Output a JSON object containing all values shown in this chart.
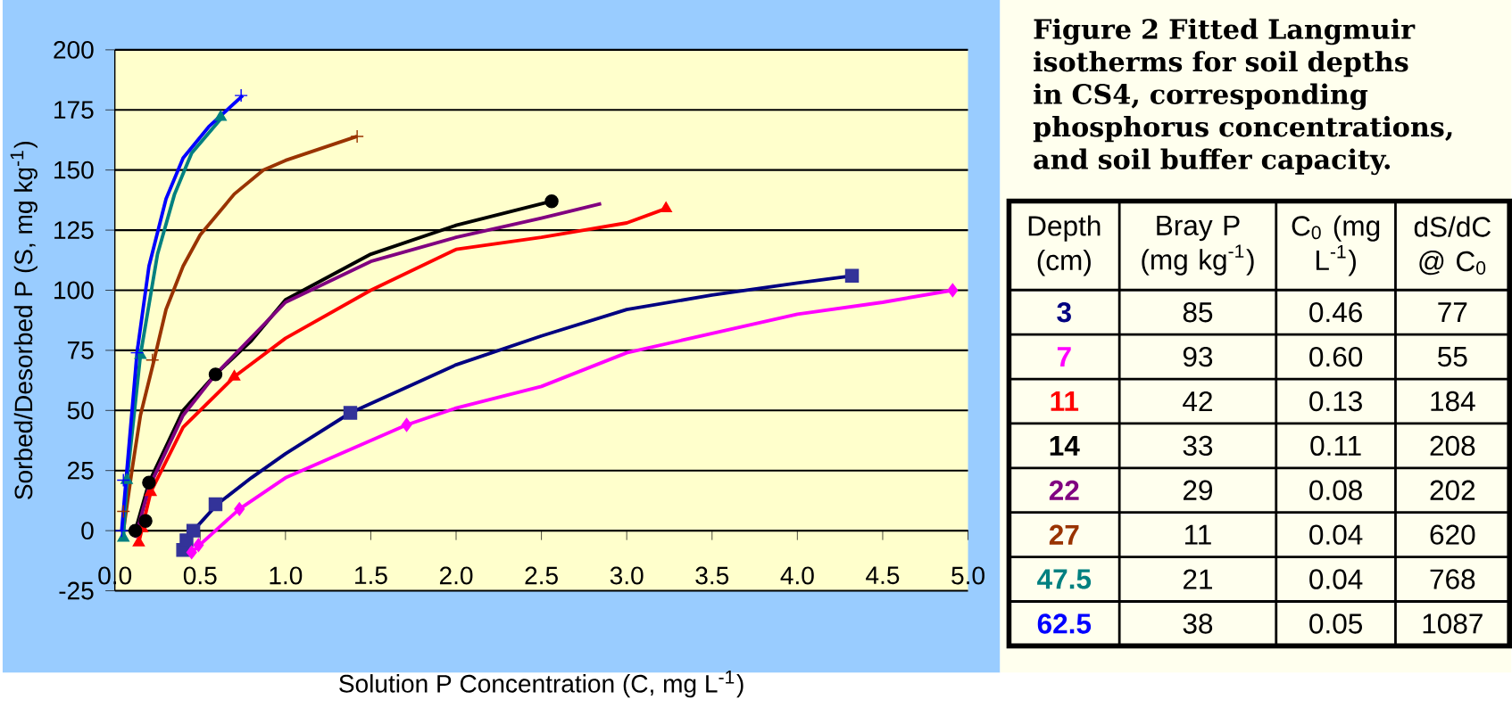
{
  "chart_data": [
    {
      "type": "line",
      "xlabel": "Solution P Concentration (C, mg L$^{-1}$)",
      "ylabel": "Sorbed/Desorbed P (S, mg kg$^{-1}$)",
      "xlim": [
        0,
        5
      ],
      "ylim": [
        -25,
        200
      ],
      "xticks": [
        {
          "value": 0,
          "label": "0.0"
        },
        {
          "value": 0.5,
          "label": "0.5"
        },
        {
          "value": 1,
          "label": "1.0"
        },
        {
          "value": 1.5,
          "label": "1.5"
        },
        {
          "value": 2,
          "label": "2.0"
        },
        {
          "value": 2.5,
          "label": "2.5"
        },
        {
          "value": 3,
          "label": "3.0"
        },
        {
          "value": 3.5,
          "label": "3.5"
        },
        {
          "value": 4,
          "label": "4.0"
        },
        {
          "value": 4.5,
          "label": "4.5"
        },
        {
          "value": 5,
          "label": "5.0"
        }
      ],
      "yticks": [
        -25,
        0,
        25,
        50,
        75,
        100,
        125,
        150,
        175,
        200
      ],
      "grid": "y",
      "series": [
        {
          "type": "line",
          "color": "#000080",
          "marker": "none",
          "x": [
            0.4,
            0.46,
            0.6,
            0.8,
            1.0,
            1.38,
            2.0,
            2.5,
            3.0,
            3.5,
            4.0,
            4.32
          ],
          "values": [
            -8,
            0,
            11,
            22,
            32,
            49,
            69,
            81,
            92,
            98,
            103,
            106
          ]
        },
        {
          "type": "line",
          "color": "#ff00ff",
          "marker": "none",
          "x": [
            0.45,
            0.73,
            1.0,
            1.71,
            2.0,
            2.5,
            3.0,
            3.5,
            4.0,
            4.5,
            4.91
          ],
          "values": [
            -9,
            9,
            22,
            44,
            51,
            60,
            74,
            82,
            90,
            95,
            100
          ]
        },
        {
          "type": "line",
          "color": "#ff0000",
          "marker": "none",
          "x": [
            0.14,
            0.21,
            0.4,
            0.7,
            1.0,
            1.5,
            2.0,
            2.5,
            3.0,
            3.23
          ],
          "values": [
            -5,
            16,
            43,
            64,
            80,
            100,
            117,
            122,
            128,
            134
          ]
        },
        {
          "type": "line",
          "color": "#000000",
          "marker": "none",
          "x": [
            0.12,
            0.2,
            0.4,
            0.59,
            0.8,
            1.0,
            1.5,
            2.0,
            2.56
          ],
          "values": [
            0,
            20,
            50,
            65,
            79,
            96,
            115,
            127,
            137
          ]
        },
        {
          "type": "line",
          "color": "#800080",
          "marker": "none",
          "x": [
            0.12,
            0.2,
            0.4,
            0.59,
            1.0,
            1.5,
            2.0,
            2.5,
            2.85
          ],
          "values": [
            -3,
            18,
            48,
            65,
            95,
            112,
            122,
            130,
            136
          ]
        },
        {
          "type": "line",
          "color": "#993300",
          "marker": "none",
          "x": [
            0.05,
            0.1,
            0.15,
            0.23,
            0.3,
            0.4,
            0.5,
            0.7,
            0.87,
            1.0,
            1.42
          ],
          "values": [
            0,
            25,
            48,
            71,
            92,
            110,
            123,
            140,
            150,
            154,
            164
          ]
        },
        {
          "type": "line",
          "color": "#008080",
          "marker": "none",
          "x": [
            0.05,
            0.07,
            0.15,
            0.25,
            0.35,
            0.45,
            0.63
          ],
          "values": [
            -3,
            20,
            73,
            115,
            140,
            157,
            172
          ]
        },
        {
          "type": "line",
          "color": "#0000ff",
          "marker": "none",
          "x": [
            0.04,
            0.13,
            0.2,
            0.3,
            0.4,
            0.55,
            0.75
          ],
          "values": [
            0,
            74,
            110,
            138,
            155,
            168,
            181
          ]
        },
        {
          "type": "scatter",
          "color": "#333399",
          "marker": "square",
          "x": [
            0.4,
            0.42,
            0.46,
            0.59,
            1.38,
            4.32
          ],
          "values": [
            -8,
            -4,
            0,
            11,
            49,
            106
          ]
        },
        {
          "type": "scatter",
          "color": "#ff00ff",
          "marker": "diamond",
          "x": [
            0.45,
            0.49,
            0.73,
            1.71,
            4.91
          ],
          "values": [
            -9,
            -6,
            9,
            44,
            100
          ]
        },
        {
          "type": "scatter",
          "color": "#ff0000",
          "marker": "triangle",
          "x": [
            0.14,
            0.16,
            0.21,
            0.7,
            3.23
          ],
          "values": [
            -5,
            1,
            16,
            64,
            134
          ]
        },
        {
          "type": "scatter",
          "color": "#000000",
          "marker": "circle",
          "x": [
            0.12,
            0.18,
            0.2,
            0.59,
            2.56
          ],
          "values": [
            0,
            4,
            20,
            65,
            137
          ]
        },
        {
          "type": "scatter",
          "color": "#993300",
          "marker": "cross",
          "x": [
            0.05,
            0.22,
            1.42
          ],
          "values": [
            8,
            71,
            164
          ]
        },
        {
          "type": "scatter",
          "color": "#008080",
          "marker": "triangle",
          "x": [
            0.05,
            0.07,
            0.15,
            0.62
          ],
          "values": [
            -3,
            21,
            73,
            172
          ]
        },
        {
          "type": "scatter",
          "color": "#0000ff",
          "marker": "cross",
          "x": [
            0.04,
            0.05,
            0.13,
            0.74
          ],
          "values": [
            0,
            21,
            74,
            181
          ]
        }
      ]
    },
    {
      "type": "other",
      "title": "Figure 2 Fitted Langmuir isotherms for soil depths in CS4, corresponding phosphorus concentrations, and soil buffer capacity.",
      "categories": [
        "Depth (cm)",
        "Bray P (mg kg$^{-1}$)",
        "C$_{0}$ (mg L$^{-1}$)",
        "dS/dC @ C$_{0}$"
      ],
      "annotations": [
        "3",
        "85",
        "0.46",
        "77",
        "7",
        "93",
        "0.60",
        "55",
        "11",
        "42",
        "0.13",
        "184",
        "14",
        "33",
        "0.11",
        "208",
        "22",
        "29",
        "0.08",
        "202",
        "27",
        "11",
        "0.04",
        "620",
        "47.5",
        "21",
        "0.04",
        "768",
        "62.5",
        "38",
        "0.05",
        "1087"
      ]
    }
  ]
}
